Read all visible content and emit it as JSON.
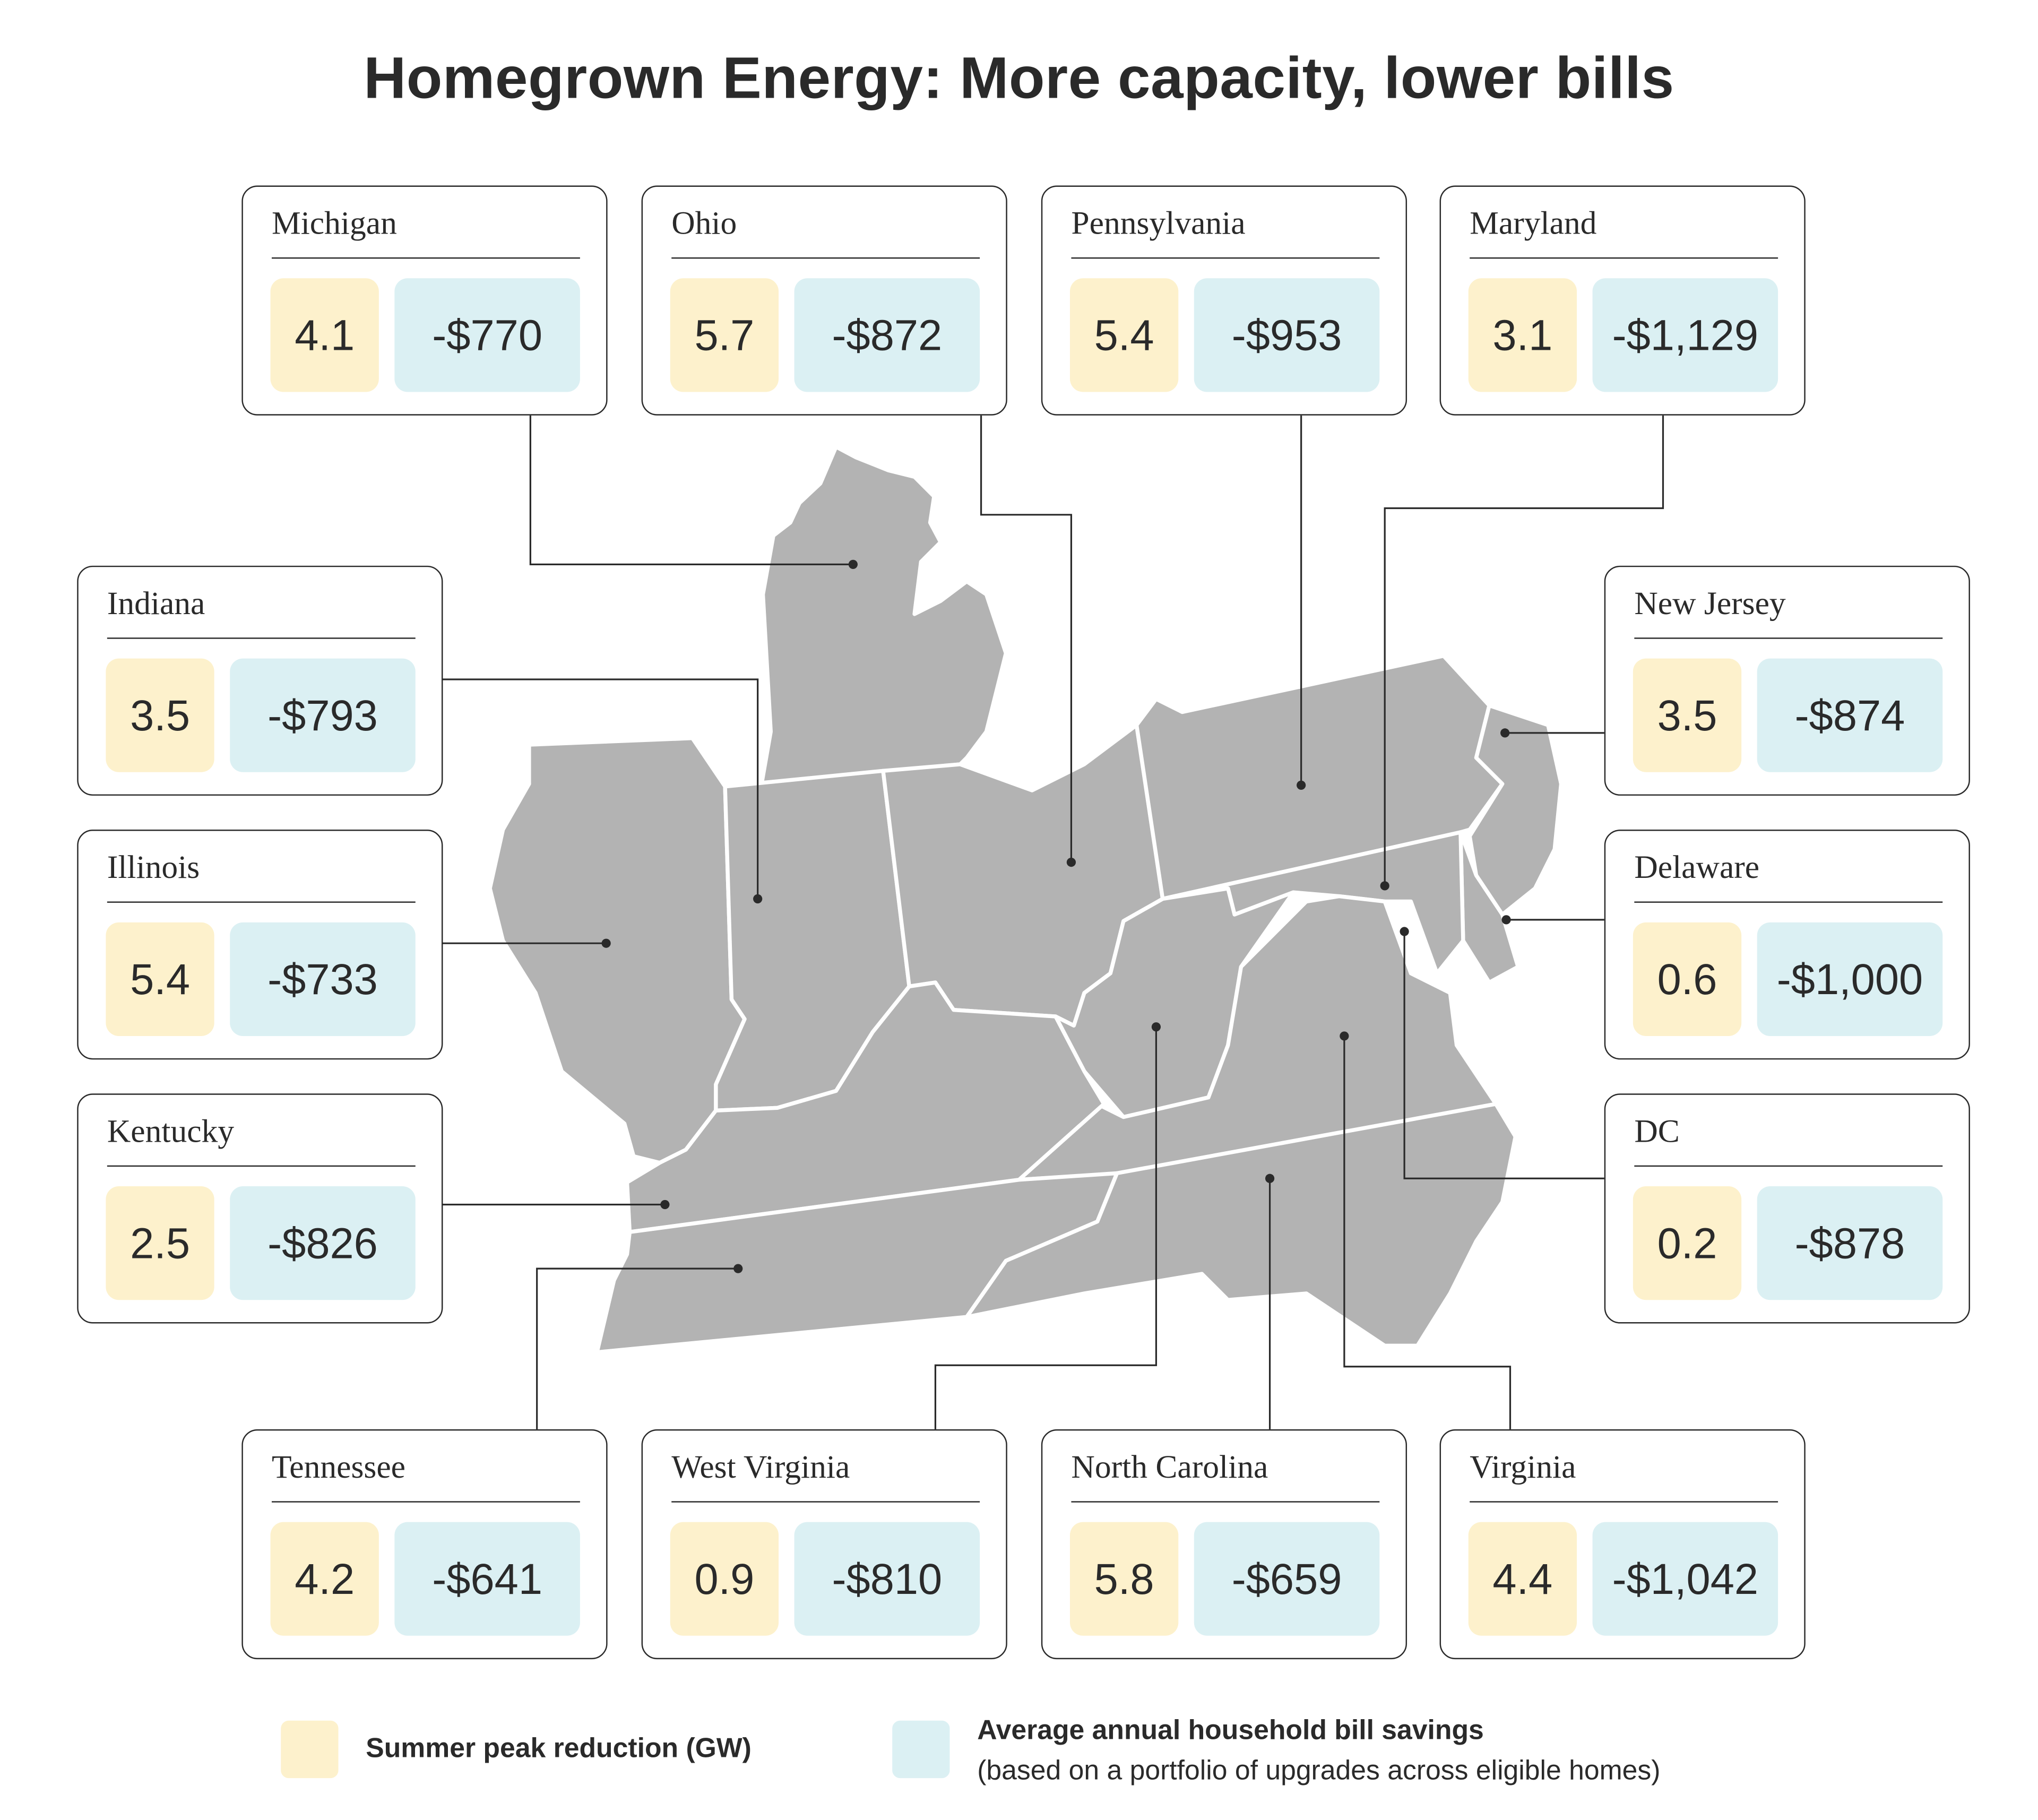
{
  "title": "Homegrown Energy: More capacity, lower bills",
  "colors": {
    "peak": "#fdf1cc",
    "savings": "#dbf0f3",
    "map_fill": "#b3b3b3",
    "ink": "#2a2a2a"
  },
  "states": [
    {
      "name": "Michigan",
      "peak_gw": "4.1",
      "savings": "-$770"
    },
    {
      "name": "Ohio",
      "peak_gw": "5.7",
      "savings": "-$872"
    },
    {
      "name": "Pennsylvania",
      "peak_gw": "5.4",
      "savings": "-$953"
    },
    {
      "name": "Maryland",
      "peak_gw": "3.1",
      "savings": "-$1,129"
    },
    {
      "name": "Indiana",
      "peak_gw": "3.5",
      "savings": "-$793"
    },
    {
      "name": "Illinois",
      "peak_gw": "5.4",
      "savings": "-$733"
    },
    {
      "name": "Kentucky",
      "peak_gw": "2.5",
      "savings": "-$826"
    },
    {
      "name": "New Jersey",
      "peak_gw": "3.5",
      "savings": "-$874"
    },
    {
      "name": "Delaware",
      "peak_gw": "0.6",
      "savings": "-$1,000"
    },
    {
      "name": "DC",
      "peak_gw": "0.2",
      "savings": "-$878"
    },
    {
      "name": "Tennessee",
      "peak_gw": "4.2",
      "savings": "-$641"
    },
    {
      "name": "West Virginia",
      "peak_gw": "0.9",
      "savings": "-$810"
    },
    {
      "name": "North Carolina",
      "peak_gw": "5.8",
      "savings": "-$659"
    },
    {
      "name": "Virginia",
      "peak_gw": "4.4",
      "savings": "-$1,042"
    }
  ],
  "legend": {
    "peak_label": "Summer peak reduction (GW)",
    "savings_label": "Average annual household bill savings",
    "savings_note": "(based on a portfolio of upgrades across eligible homes)"
  }
}
